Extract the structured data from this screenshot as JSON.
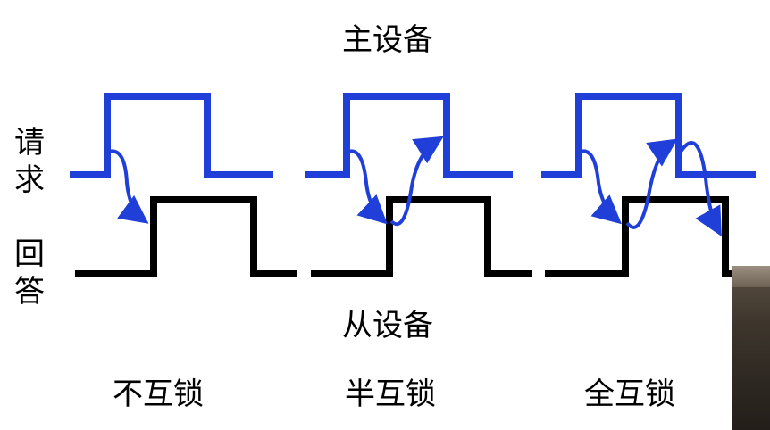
{
  "labels": {
    "master": "主设备",
    "slave": "从设备",
    "request": [
      "请",
      "求"
    ],
    "answer": [
      "回",
      "答"
    ],
    "modes": [
      "不互锁",
      "半互锁",
      "全互锁"
    ]
  },
  "colors": {
    "request_signal": "#1f3fd8",
    "answer_signal": "#000000",
    "background": "#ffffff"
  }
}
